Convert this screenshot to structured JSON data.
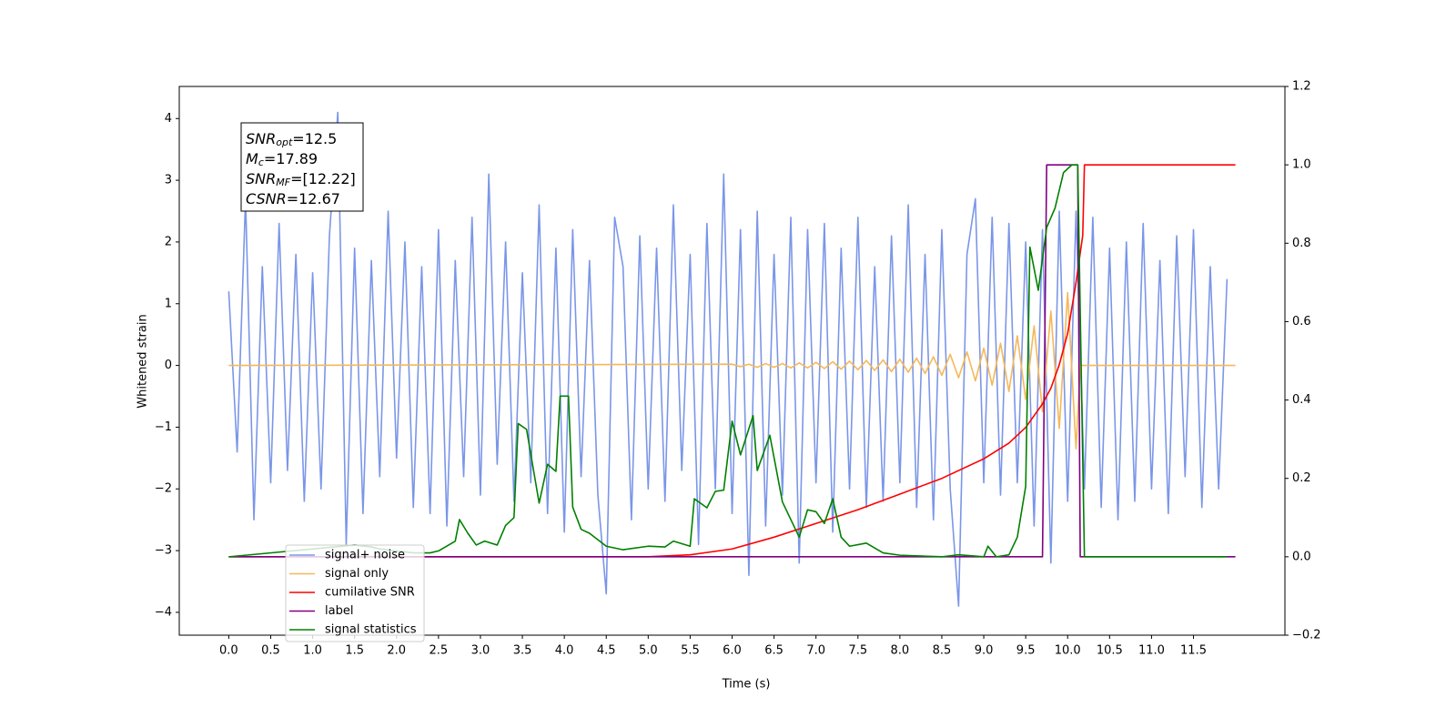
{
  "chart_data": {
    "type": "line",
    "xlabel": "Time (s)",
    "ylabel": "Whitened strain",
    "annotation": [
      {
        "name": "SNR",
        "sub": "opt",
        "text": "=12.5"
      },
      {
        "name": "M",
        "sub": "c",
        "text": "=17.89"
      },
      {
        "name": "SNR",
        "sub": "MF",
        "text": "=[12.22]"
      },
      {
        "name": "CSNR",
        "sub": "",
        "text": "=12.67"
      }
    ],
    "xlim": [
      -0.59,
      12.59
    ],
    "xticks": [
      {
        "value": 0,
        "label": "0.0"
      },
      0.5,
      {
        "value": 1,
        "label": "1.0"
      },
      1.5,
      {
        "value": 2,
        "label": "2.0"
      },
      2.5,
      {
        "value": 3,
        "label": "3.0"
      },
      3.5,
      {
        "value": 4,
        "label": "4.0"
      },
      4.5,
      {
        "value": 5,
        "label": "5.0"
      },
      5.5,
      {
        "value": 6,
        "label": "6.0"
      },
      6.5,
      {
        "value": 7,
        "label": "7.0"
      },
      7.5,
      {
        "value": 8,
        "label": "8.0"
      },
      8.5,
      {
        "value": 9,
        "label": "9.0"
      },
      9.5,
      {
        "value": 10,
        "label": "10.0"
      },
      10.5,
      {
        "value": 11,
        "label": "11.0"
      },
      11.5
    ],
    "ylim": [
      -4.37,
      4.52
    ],
    "yticks": [
      {
        "value": -4,
        "label": "−4"
      },
      {
        "value": -3,
        "label": "−3"
      },
      {
        "value": -2,
        "label": "−2"
      },
      {
        "value": -1,
        "label": "−1"
      },
      0,
      1,
      2,
      3,
      4
    ],
    "y2lim": [
      -0.2,
      1.2
    ],
    "y2ticks": [
      {
        "value": -0.2,
        "label": "−0.2"
      },
      {
        "value": 0,
        "label": "0.0"
      },
      0.2,
      0.4,
      0.6,
      0.8,
      {
        "value": 1,
        "label": "1.0"
      },
      1.2
    ],
    "legend": "lower left",
    "series": [
      {
        "name": "signal+ noise",
        "color": "#7b96e8",
        "x": [
          0,
          0.1,
          0.2,
          0.3,
          0.4,
          0.5,
          0.6,
          0.7,
          0.8,
          0.9,
          1,
          1.1,
          1.2,
          1.3,
          1.4,
          1.5,
          1.6,
          1.7,
          1.8,
          1.9,
          2,
          2.1,
          2.2,
          2.3,
          2.4,
          2.5,
          2.6,
          2.7,
          2.8,
          2.9,
          3,
          3.1,
          3.2,
          3.3,
          3.4,
          3.5,
          3.6,
          3.7,
          3.8,
          3.9,
          4,
          4.1,
          4.2,
          4.3,
          4.4,
          4.5,
          4.6,
          4.7,
          4.8,
          4.9,
          5,
          5.1,
          5.2,
          5.3,
          5.4,
          5.5,
          5.6,
          5.7,
          5.8,
          5.9,
          6,
          6.1,
          6.2,
          6.3,
          6.4,
          6.5,
          6.6,
          6.7,
          6.8,
          6.9,
          7,
          7.1,
          7.2,
          7.3,
          7.4,
          7.5,
          7.6,
          7.7,
          7.8,
          7.9,
          8,
          8.1,
          8.2,
          8.3,
          8.4,
          8.5,
          8.6,
          8.7,
          8.8,
          8.9,
          9,
          9.1,
          9.2,
          9.3,
          9.4,
          9.5,
          9.6,
          9.7,
          9.8,
          9.9,
          10,
          10.1,
          10.2,
          10.3,
          10.4,
          10.5,
          10.6,
          10.7,
          10.8,
          10.9,
          11,
          11.1,
          11.2,
          11.3,
          11.4,
          11.5,
          11.6,
          11.7,
          11.8,
          11.9
        ],
        "values": [
          1.2,
          -1.4,
          2.7,
          -2.5,
          1.6,
          -1.9,
          2.3,
          -1.7,
          1.8,
          -2.2,
          1.5,
          -2.0,
          2.1,
          4.1,
          -2.9,
          1.9,
          -2.4,
          1.7,
          -1.8,
          2.5,
          -1.5,
          2.0,
          -2.3,
          1.6,
          -2.4,
          2.2,
          -2.6,
          1.7,
          -1.8,
          2.4,
          -2.1,
          3.1,
          -1.6,
          2.0,
          -2.2,
          1.5,
          -1.9,
          2.6,
          -2.4,
          1.9,
          -2.7,
          2.2,
          -1.8,
          1.7,
          -2.1,
          -3.7,
          2.4,
          1.6,
          -2.5,
          2.1,
          -2.0,
          1.9,
          -2.2,
          2.6,
          -1.7,
          1.8,
          -2.9,
          2.3,
          -2.0,
          3.1,
          -2.4,
          2.2,
          -3.4,
          2.5,
          -2.6,
          1.8,
          -2.1,
          2.4,
          -3.2,
          2.2,
          -1.9,
          2.3,
          -2.7,
          1.9,
          -2.0,
          2.4,
          -2.3,
          1.6,
          -2.2,
          2.1,
          -1.9,
          2.6,
          -2.3,
          1.8,
          -2.5,
          2.2,
          -2.0,
          -3.9,
          1.8,
          2.7,
          -1.9,
          2.4,
          -2.1,
          2.3,
          -1.9,
          2.0,
          -2.6,
          2.2,
          -3.2,
          2.5,
          -2.2,
          2.5,
          -2.0,
          2.4,
          -2.3,
          1.9,
          -2.5,
          2.0,
          -2.2,
          2.3,
          -2.0,
          1.7,
          -2.4,
          2.1,
          -1.8,
          2.2,
          -2.3,
          1.6,
          -2.0,
          1.4
        ]
      },
      {
        "name": "signal only",
        "color": "#f5b859",
        "x": [
          0,
          6.0,
          6.1,
          6.2,
          6.3,
          6.4,
          6.5,
          6.6,
          6.7,
          6.8,
          6.9,
          7.0,
          7.1,
          7.2,
          7.3,
          7.4,
          7.5,
          7.6,
          7.7,
          7.8,
          7.9,
          8.0,
          8.1,
          8.2,
          8.3,
          8.4,
          8.5,
          8.6,
          8.7,
          8.8,
          8.9,
          9.0,
          9.1,
          9.2,
          9.3,
          9.4,
          9.5,
          9.6,
          9.7,
          9.8,
          9.9,
          10.0,
          10.1,
          10.15,
          12
        ],
        "values": [
          0,
          0.02,
          -0.02,
          0.02,
          -0.03,
          0.03,
          -0.03,
          0.03,
          -0.04,
          0.04,
          -0.04,
          0.05,
          -0.05,
          0.06,
          -0.06,
          0.07,
          -0.07,
          0.08,
          -0.08,
          0.09,
          -0.1,
          0.1,
          -0.11,
          0.12,
          -0.13,
          0.14,
          -0.16,
          0.18,
          -0.2,
          0.22,
          -0.25,
          0.28,
          -0.32,
          0.36,
          -0.42,
          0.48,
          -0.55,
          0.64,
          -0.75,
          0.88,
          -1.02,
          1.18,
          -1.35,
          0,
          0
        ]
      },
      {
        "name": "cumilative SNR",
        "color": "#ff0000",
        "axis": "y2",
        "x": [
          0,
          5,
          5.5,
          6,
          6.5,
          7,
          7.5,
          8,
          8.5,
          9,
          9.3,
          9.5,
          9.7,
          9.8,
          9.9,
          10.0,
          10.1,
          10.18,
          10.2,
          12
        ],
        "values": [
          0,
          0,
          0.005,
          0.02,
          0.05,
          0.085,
          0.12,
          0.16,
          0.2,
          0.25,
          0.29,
          0.33,
          0.39,
          0.43,
          0.49,
          0.57,
          0.7,
          0.82,
          1.0,
          1.0
        ]
      },
      {
        "name": "label",
        "color": "#800080",
        "axis": "y2",
        "x": [
          0,
          9.7,
          9.75,
          10.12,
          10.15,
          12
        ],
        "values": [
          0,
          0,
          1,
          1,
          0,
          0
        ]
      },
      {
        "name": "signal statistics",
        "color": "#008000",
        "axis": "y2",
        "x": [
          0,
          1.5,
          1.7,
          1.8,
          2.0,
          2.2,
          2.4,
          2.5,
          2.7,
          2.75,
          2.85,
          2.95,
          3.05,
          3.2,
          3.3,
          3.4,
          3.45,
          3.55,
          3.7,
          3.8,
          3.9,
          3.95,
          4.05,
          4.1,
          4.2,
          4.3,
          4.5,
          4.7,
          5.0,
          5.2,
          5.3,
          5.5,
          5.55,
          5.7,
          5.8,
          5.9,
          6.0,
          6.1,
          6.25,
          6.3,
          6.45,
          6.6,
          6.8,
          6.9,
          7.0,
          7.1,
          7.2,
          7.3,
          7.4,
          7.6,
          7.8,
          8.0,
          8.5,
          8.7,
          9.0,
          9.05,
          9.15,
          9.3,
          9.4,
          9.5,
          9.55,
          9.65,
          9.75,
          9.85,
          9.95,
          10.05,
          10.12,
          10.2,
          11.9
        ],
        "values": [
          0,
          0.03,
          0.025,
          0.02,
          0.015,
          0.01,
          0.01,
          0.015,
          0.04,
          0.095,
          0.06,
          0.03,
          0.04,
          0.03,
          0.08,
          0.1,
          0.34,
          0.325,
          0.137,
          0.236,
          0.218,
          0.41,
          0.41,
          0.127,
          0.07,
          0.06,
          0.027,
          0.018,
          0.027,
          0.025,
          0.04,
          0.027,
          0.148,
          0.125,
          0.167,
          0.17,
          0.346,
          0.26,
          0.36,
          0.22,
          0.31,
          0.14,
          0.05,
          0.12,
          0.115,
          0.085,
          0.148,
          0.05,
          0.027,
          0.035,
          0.01,
          0.004,
          0,
          0.005,
          0,
          0.027,
          0,
          0.005,
          0.05,
          0.18,
          0.79,
          0.68,
          0.84,
          0.89,
          0.98,
          1.0,
          1.0,
          0,
          0
        ]
      }
    ]
  }
}
